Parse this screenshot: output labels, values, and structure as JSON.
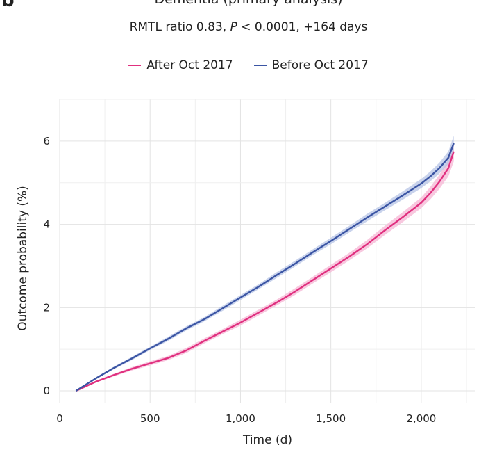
{
  "panel_letter": "b",
  "chart_data": {
    "type": "line",
    "title": "Dementia (primary analysis)",
    "subtitle": {
      "prefix": "RMTL ratio 0.83, ",
      "p_symbol": "P",
      "suffix": " < 0.0001, +164 days"
    },
    "xlabel": "Time (d)",
    "ylabel": "Outcome probability (%)",
    "xlim": [
      0,
      2300
    ],
    "ylim": [
      -0.3,
      7.0
    ],
    "xticks": [
      0,
      500,
      1000,
      1500,
      2000
    ],
    "xtick_labels": [
      "0",
      "500",
      "1,000",
      "1,500",
      "2,000"
    ],
    "yticks": [
      0,
      2,
      4,
      6
    ],
    "ytick_labels": [
      "0",
      "2",
      "4",
      "6"
    ],
    "grid": true,
    "legend_position": "top-center",
    "series": [
      {
        "name": "After Oct 2017",
        "color": "#e0307f",
        "band_color": "#f5b6d4",
        "x": [
          90,
          200,
          300,
          400,
          500,
          600,
          700,
          800,
          900,
          1000,
          1100,
          1200,
          1300,
          1400,
          1500,
          1600,
          1700,
          1800,
          1900,
          2000,
          2050,
          2100,
          2150,
          2180
        ],
        "y": [
          0,
          0.22,
          0.38,
          0.53,
          0.66,
          0.79,
          0.97,
          1.2,
          1.42,
          1.64,
          1.88,
          2.12,
          2.38,
          2.66,
          2.94,
          3.22,
          3.52,
          3.86,
          4.18,
          4.52,
          4.75,
          5.02,
          5.35,
          5.75
        ],
        "band_halfwidth": [
          0,
          0.02,
          0.03,
          0.04,
          0.05,
          0.05,
          0.06,
          0.06,
          0.06,
          0.07,
          0.07,
          0.07,
          0.08,
          0.08,
          0.09,
          0.09,
          0.1,
          0.11,
          0.12,
          0.13,
          0.15,
          0.17,
          0.2,
          0.24
        ]
      },
      {
        "name": "Before Oct 2017",
        "color": "#3b55a4",
        "band_color": "#b7c4e6",
        "x": [
          90,
          200,
          300,
          400,
          500,
          600,
          700,
          800,
          900,
          1000,
          1100,
          1200,
          1300,
          1400,
          1500,
          1600,
          1700,
          1800,
          1900,
          2000,
          2050,
          2100,
          2150,
          2180
        ],
        "y": [
          0,
          0.3,
          0.55,
          0.78,
          1.02,
          1.25,
          1.5,
          1.72,
          1.98,
          2.24,
          2.5,
          2.78,
          3.05,
          3.33,
          3.6,
          3.88,
          4.16,
          4.43,
          4.7,
          4.98,
          5.15,
          5.35,
          5.6,
          5.95
        ],
        "band_halfwidth": [
          0,
          0.02,
          0.03,
          0.04,
          0.04,
          0.05,
          0.05,
          0.05,
          0.06,
          0.06,
          0.06,
          0.07,
          0.07,
          0.07,
          0.08,
          0.08,
          0.09,
          0.09,
          0.1,
          0.11,
          0.12,
          0.13,
          0.15,
          0.18
        ]
      }
    ]
  }
}
